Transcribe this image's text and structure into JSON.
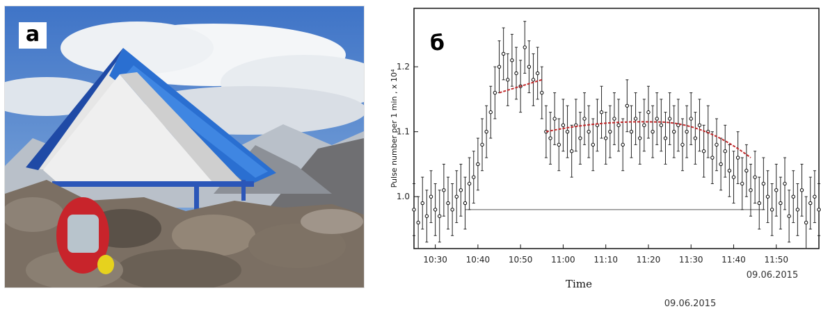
{
  "photo_panel": {
    "letter": "а"
  },
  "chart_panel": {
    "letter": "б",
    "date_inside": "09.06.2015",
    "date_below": "09.06.2015"
  },
  "chart_data": {
    "type": "scatter",
    "title": "",
    "xlabel": "Time",
    "ylabel": "Pulse number per 1 min , x 10⁴",
    "x_ticks": [
      "10:30",
      "10:40",
      "10:50",
      "11:00",
      "11:10",
      "11:20",
      "11:30",
      "11:40",
      "11:50"
    ],
    "y_ticks": [
      1.0,
      1.1,
      1.2
    ],
    "xlim": [
      "10:25",
      "12:00"
    ],
    "ylim": [
      0.92,
      1.29
    ],
    "reference_level": 0.98,
    "series": [
      {
        "x": [
          "10:25",
          "10:26",
          "10:27",
          "10:28",
          "10:29",
          "10:30",
          "10:31",
          "10:32",
          "10:33",
          "10:34",
          "10:35",
          "10:36",
          "10:37",
          "10:38",
          "10:39",
          "10:40",
          "10:41",
          "10:42",
          "10:43",
          "10:44",
          "10:45",
          "10:46",
          "10:47",
          "10:48",
          "10:49",
          "10:50",
          "10:51",
          "10:52",
          "10:53",
          "10:54",
          "10:55",
          "10:56",
          "10:57",
          "10:58",
          "10:59",
          "11:00",
          "11:01",
          "11:02",
          "11:03",
          "11:04",
          "11:05",
          "11:06",
          "11:07",
          "11:08",
          "11:09",
          "11:10",
          "11:11",
          "11:12",
          "11:13",
          "11:14",
          "11:15",
          "11:16",
          "11:17",
          "11:18",
          "11:19",
          "11:20",
          "11:21",
          "11:22",
          "11:23",
          "11:24",
          "11:25",
          "11:26",
          "11:27",
          "11:28",
          "11:29",
          "11:30",
          "11:31",
          "11:32",
          "11:33",
          "11:34",
          "11:35",
          "11:36",
          "11:37",
          "11:38",
          "11:39",
          "11:40",
          "11:41",
          "11:42",
          "11:43",
          "11:44",
          "11:45",
          "11:46",
          "11:47",
          "11:48",
          "11:49",
          "11:50",
          "11:51",
          "11:52",
          "11:53",
          "11:54",
          "11:55",
          "11:56",
          "11:57",
          "11:58",
          "11:59",
          "12:00"
        ],
        "y": [
          0.98,
          0.96,
          0.99,
          0.97,
          1.0,
          0.98,
          0.97,
          1.01,
          0.99,
          0.98,
          1.0,
          1.01,
          0.99,
          1.02,
          1.03,
          1.05,
          1.08,
          1.1,
          1.13,
          1.16,
          1.2,
          1.22,
          1.18,
          1.21,
          1.19,
          1.17,
          1.23,
          1.2,
          1.18,
          1.19,
          1.16,
          1.1,
          1.09,
          1.12,
          1.08,
          1.11,
          1.1,
          1.07,
          1.11,
          1.09,
          1.12,
          1.1,
          1.08,
          1.11,
          1.13,
          1.09,
          1.1,
          1.12,
          1.11,
          1.08,
          1.14,
          1.1,
          1.12,
          1.09,
          1.11,
          1.13,
          1.1,
          1.12,
          1.11,
          1.09,
          1.12,
          1.1,
          1.11,
          1.08,
          1.1,
          1.12,
          1.09,
          1.11,
          1.07,
          1.1,
          1.06,
          1.08,
          1.05,
          1.07,
          1.04,
          1.03,
          1.06,
          1.02,
          1.04,
          1.01,
          1.03,
          0.99,
          1.02,
          1.0,
          0.98,
          1.01,
          0.99,
          1.02,
          0.97,
          1.0,
          0.98,
          1.01,
          0.96,
          0.99,
          1.0,
          0.98
        ],
        "error": 0.04
      }
    ],
    "fit_segments": [
      {
        "x": [
          "10:45",
          "10:55"
        ],
        "y": [
          1.16,
          1.18
        ]
      },
      {
        "x": [
          "10:56",
          "11:44"
        ],
        "y": [
          1.1,
          1.06
        ],
        "peak": {
          "x": "11:21",
          "y": 1.115
        }
      }
    ],
    "grid": false,
    "legend": "none"
  }
}
